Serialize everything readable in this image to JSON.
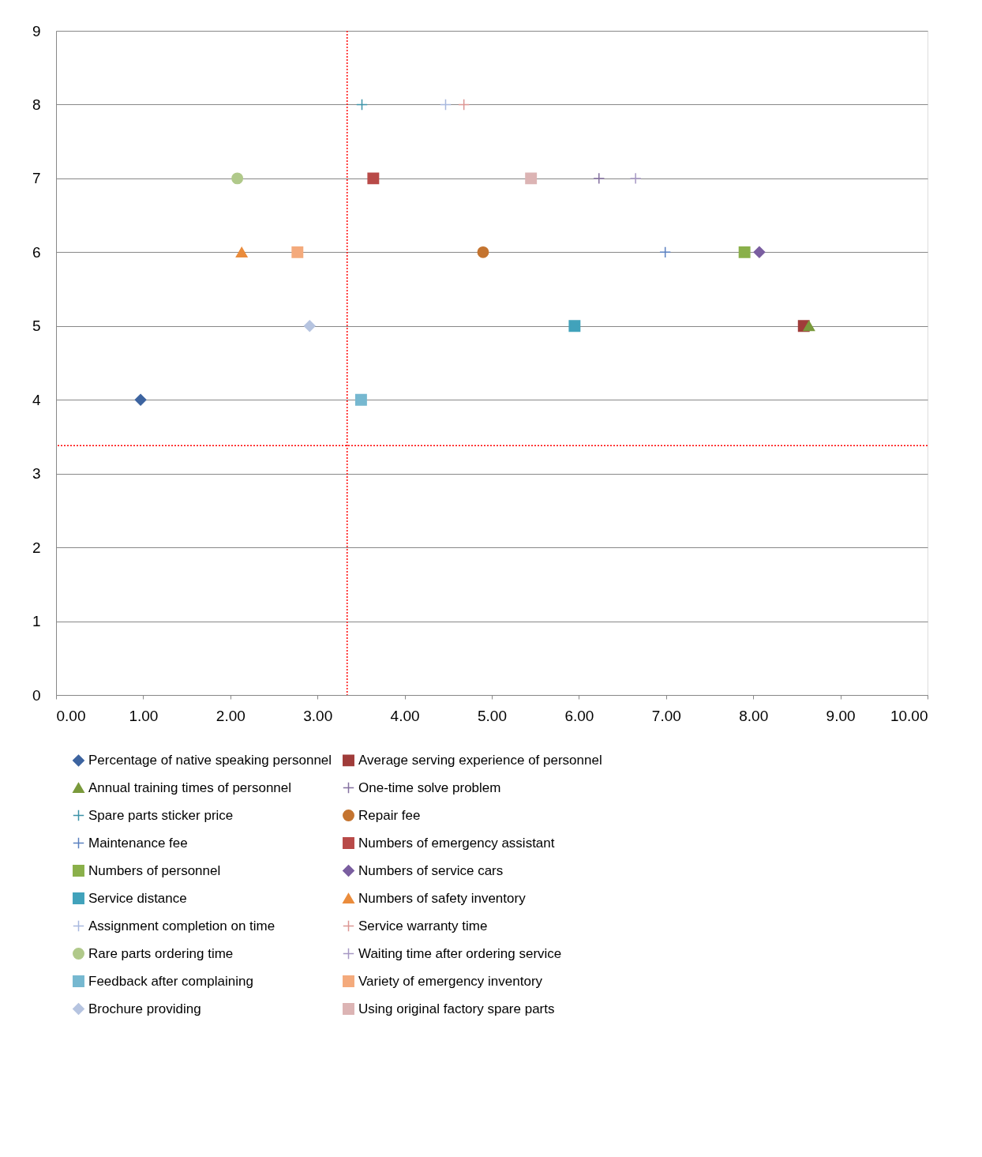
{
  "chart_data": {
    "type": "scatter",
    "xlim": [
      0,
      10
    ],
    "xticks": [
      {
        "value": 0,
        "label": "0.00"
      },
      {
        "value": 1,
        "label": "1.00"
      },
      {
        "value": 2,
        "label": "2.00"
      },
      {
        "value": 3,
        "label": "3.00"
      },
      {
        "value": 4,
        "label": "4.00"
      },
      {
        "value": 5,
        "label": "5.00"
      },
      {
        "value": 6,
        "label": "6.00"
      },
      {
        "value": 7,
        "label": "7.00"
      },
      {
        "value": 8,
        "label": "8.00"
      },
      {
        "value": 9,
        "label": "9.00"
      },
      {
        "value": 10,
        "label": "10.00"
      }
    ],
    "ylim": [
      0,
      9
    ],
    "yticks": [
      0,
      1,
      2,
      3,
      4,
      5,
      6,
      7,
      8,
      9
    ],
    "grid": "y",
    "legend": "bottom",
    "ref_lines": [
      {
        "axis": "x",
        "value": 3.34,
        "color": "#ff0000",
        "line_style": "dotted"
      },
      {
        "axis": "y",
        "value": 3.38,
        "color": "#ff0000",
        "line_style": "dotted"
      }
    ],
    "series": [
      {
        "name": "Percentage of native speaking personnel",
        "color": "#3d64a0",
        "marker": "diamond",
        "x": [
          0.97
        ],
        "values": [
          4
        ]
      },
      {
        "name": "Average serving experience of personnel",
        "color": "#a03c3a",
        "marker": "square",
        "x": [
          8.58
        ],
        "values": [
          5
        ]
      },
      {
        "name": "Annual training times of personnel",
        "color": "#7a9a3c",
        "marker": "triangle",
        "x": [
          8.64
        ],
        "values": [
          5
        ]
      },
      {
        "name": "One-time solve problem",
        "color": "#8470a0",
        "marker": "cross",
        "x": [
          6.23
        ],
        "values": [
          7
        ]
      },
      {
        "name": "Spare parts sticker price",
        "color": "#3d93a8",
        "marker": "cross",
        "x": [
          3.51
        ],
        "values": [
          8
        ]
      },
      {
        "name": "Repair fee",
        "color": "#c47430",
        "marker": "circle",
        "x": [
          4.9
        ],
        "values": [
          6
        ]
      },
      {
        "name": "Maintenance fee",
        "color": "#5a80c0",
        "marker": "cross",
        "x": [
          6.99
        ],
        "values": [
          6
        ]
      },
      {
        "name": "Numbers of emergency assistant",
        "color": "#b84a48",
        "marker": "square",
        "x": [
          3.64
        ],
        "values": [
          7
        ]
      },
      {
        "name": "Numbers of personnel",
        "color": "#8ab04a",
        "marker": "square",
        "x": [
          7.9
        ],
        "values": [
          6
        ]
      },
      {
        "name": "Numbers of service cars",
        "color": "#7a5ea0",
        "marker": "diamond",
        "x": [
          8.07
        ],
        "values": [
          6
        ]
      },
      {
        "name": "Service distance",
        "color": "#41a2bb",
        "marker": "square",
        "x": [
          5.95
        ],
        "values": [
          5
        ]
      },
      {
        "name": "Numbers of safety inventory",
        "color": "#ea8c3c",
        "marker": "triangle",
        "x": [
          2.13
        ],
        "values": [
          6
        ]
      },
      {
        "name": "Assignment completion on time",
        "color": "#a8b8de",
        "marker": "cross",
        "x": [
          4.47
        ],
        "values": [
          8
        ]
      },
      {
        "name": "Service warranty time",
        "color": "#dc9694",
        "marker": "cross",
        "x": [
          4.68
        ],
        "values": [
          8
        ]
      },
      {
        "name": "Rare parts ordering time",
        "color": "#b0c98a",
        "marker": "circle",
        "x": [
          2.08
        ],
        "values": [
          7
        ]
      },
      {
        "name": "Waiting time after ordering service",
        "color": "#a698c4",
        "marker": "cross",
        "x": [
          6.65
        ],
        "values": [
          7
        ]
      },
      {
        "name": "Feedback after complaining",
        "color": "#76b8d0",
        "marker": "square",
        "x": [
          3.5
        ],
        "values": [
          4
        ]
      },
      {
        "name": "Variety of emergency inventory",
        "color": "#f4aa7c",
        "marker": "square",
        "x": [
          2.77
        ],
        "values": [
          6
        ]
      },
      {
        "name": "Brochure providing",
        "color": "#b6c4e0",
        "marker": "diamond",
        "x": [
          2.91
        ],
        "values": [
          5
        ]
      },
      {
        "name": "Using original factory spare parts",
        "color": "#dcb4b4",
        "marker": "square",
        "x": [
          5.45
        ],
        "values": [
          7
        ]
      }
    ]
  }
}
